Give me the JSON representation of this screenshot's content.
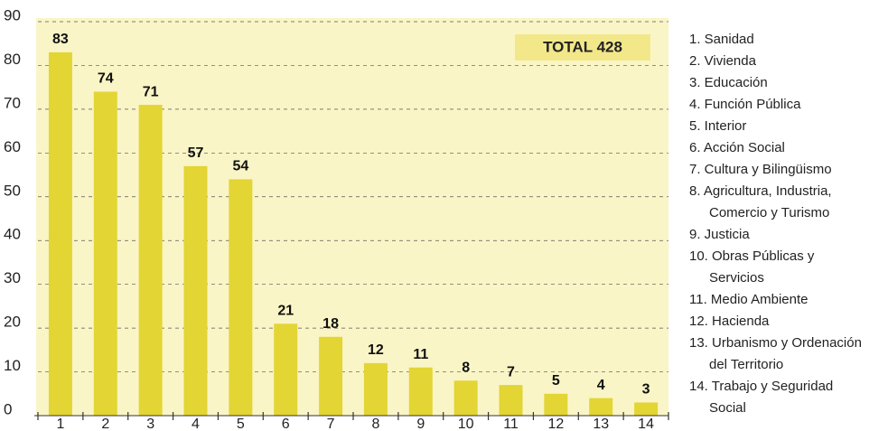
{
  "chart_data": {
    "type": "bar",
    "categories": [
      "1",
      "2",
      "3",
      "4",
      "5",
      "6",
      "7",
      "8",
      "9",
      "10",
      "11",
      "12",
      "13",
      "14"
    ],
    "values": [
      83,
      74,
      71,
      57,
      54,
      21,
      18,
      12,
      11,
      8,
      7,
      5,
      4,
      3
    ],
    "color": "#e3d534",
    "ylim": [
      0,
      90
    ],
    "yticks": [
      0,
      10,
      20,
      30,
      40,
      50,
      60,
      70,
      80,
      90
    ],
    "grid": true,
    "annotation": "TOTAL 428",
    "legend": [
      [
        "1. Sanidad"
      ],
      [
        "2. Vivienda"
      ],
      [
        "3. Educación"
      ],
      [
        "4. Función Pública"
      ],
      [
        "5. Interior"
      ],
      [
        "6. Acción Social"
      ],
      [
        "7. Cultura y Bilingüismo"
      ],
      [
        "8. Agricultura, Industria,",
        "Comercio y Turismo"
      ],
      [
        "9. Justicia"
      ],
      [
        "10. Obras Públicas y",
        "Servicios"
      ],
      [
        "11. Medio Ambiente"
      ],
      [
        "12. Hacienda"
      ],
      [
        "13. Urbanismo y Ordenación",
        "del Territorio"
      ],
      [
        "14. Trabajo y Seguridad",
        "Social"
      ]
    ]
  }
}
